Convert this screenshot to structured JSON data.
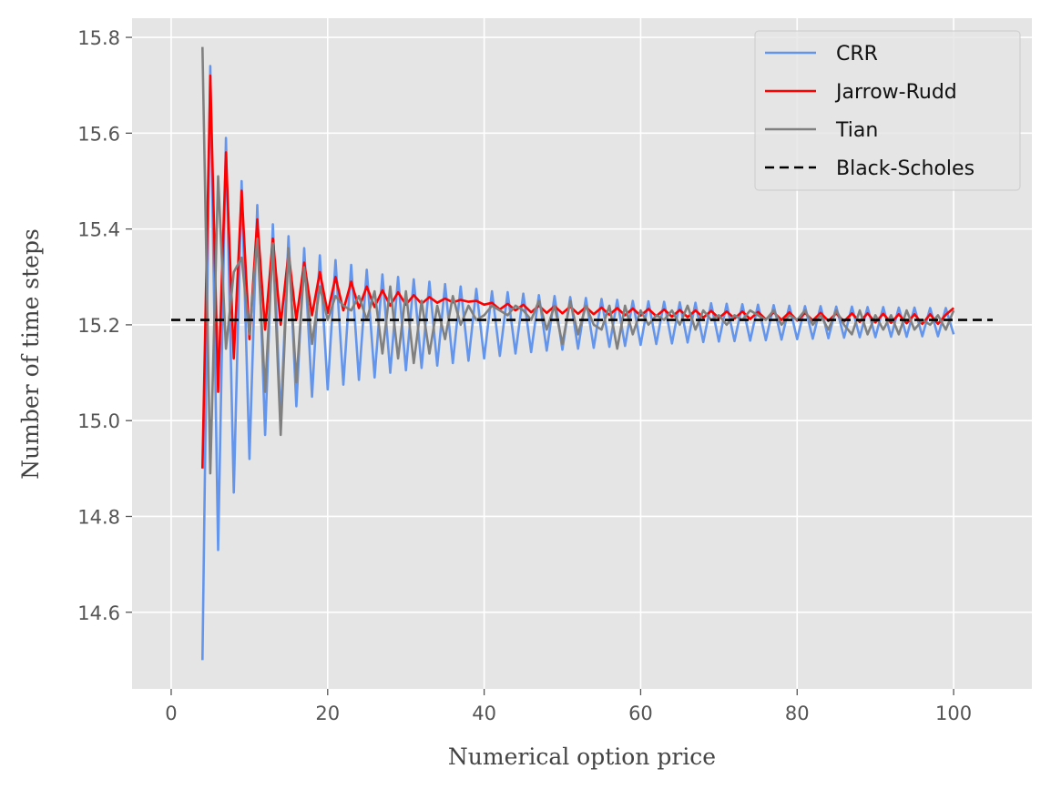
{
  "chart_data": {
    "type": "line",
    "xlabel": "Numerical option price",
    "ylabel": "Number of time steps",
    "xlim": [
      -5,
      110
    ],
    "ylim": [
      14.44,
      15.84
    ],
    "xticks": [
      0,
      20,
      40,
      60,
      80,
      100
    ],
    "xtick_labels": [
      "0",
      "20",
      "40",
      "60",
      "80",
      "100"
    ],
    "yticks": [
      14.6,
      14.8,
      15.0,
      15.2,
      15.4,
      15.6,
      15.8
    ],
    "ytick_labels": [
      "14.6",
      "14.8",
      "15.0",
      "15.2",
      "15.4",
      "15.6",
      "15.8"
    ],
    "grid": true,
    "legend": "top-right",
    "background": "#e5e5e5",
    "series": [
      {
        "name": "CRR",
        "color": "#6495ed",
        "x": [
          4,
          5,
          6,
          7,
          8,
          9,
          10,
          11,
          12,
          13,
          14,
          15,
          16,
          17,
          18,
          19,
          20,
          21,
          22,
          23,
          24,
          25,
          26,
          27,
          28,
          29,
          30,
          31,
          32,
          33,
          34,
          35,
          36,
          37,
          38,
          39,
          40,
          41,
          42,
          43,
          44,
          45,
          46,
          47,
          48,
          49,
          50,
          51,
          52,
          53,
          54,
          55,
          56,
          57,
          58,
          59,
          60,
          61,
          62,
          63,
          64,
          65,
          66,
          67,
          68,
          69,
          70,
          71,
          72,
          73,
          74,
          75,
          76,
          77,
          78,
          79,
          80,
          81,
          82,
          83,
          84,
          85,
          86,
          87,
          88,
          89,
          90,
          91,
          92,
          93,
          94,
          95,
          96,
          97,
          98,
          99,
          100
        ],
        "y": [
          14.5,
          15.74,
          14.73,
          15.59,
          14.85,
          15.5,
          14.92,
          15.45,
          14.97,
          15.41,
          15.0,
          15.385,
          15.03,
          15.36,
          15.05,
          15.345,
          15.065,
          15.335,
          15.075,
          15.325,
          15.085,
          15.315,
          15.09,
          15.305,
          15.1,
          15.3,
          15.105,
          15.295,
          15.11,
          15.29,
          15.115,
          15.285,
          15.12,
          15.28,
          15.125,
          15.275,
          15.13,
          15.27,
          15.135,
          15.268,
          15.14,
          15.265,
          15.143,
          15.262,
          15.146,
          15.26,
          15.148,
          15.258,
          15.15,
          15.256,
          15.152,
          15.254,
          15.154,
          15.252,
          15.156,
          15.25,
          15.158,
          15.249,
          15.16,
          15.248,
          15.161,
          15.247,
          15.163,
          15.246,
          15.164,
          15.245,
          15.165,
          15.244,
          15.166,
          15.243,
          15.167,
          15.242,
          15.168,
          15.241,
          15.169,
          15.24,
          15.17,
          15.239,
          15.171,
          15.239,
          15.172,
          15.238,
          15.173,
          15.238,
          15.174,
          15.237,
          15.174,
          15.237,
          15.175,
          15.236,
          15.175,
          15.236,
          15.176,
          15.235,
          15.176,
          15.235,
          15.18
        ]
      },
      {
        "name": "Jarrow-Rudd",
        "color": "#ff0000",
        "x": [
          4,
          5,
          6,
          7,
          8,
          9,
          10,
          11,
          12,
          13,
          14,
          15,
          16,
          17,
          18,
          19,
          20,
          21,
          22,
          23,
          24,
          25,
          26,
          27,
          28,
          29,
          30,
          31,
          32,
          33,
          34,
          35,
          36,
          37,
          38,
          39,
          40,
          41,
          42,
          43,
          44,
          45,
          46,
          47,
          48,
          49,
          50,
          51,
          52,
          53,
          54,
          55,
          56,
          57,
          58,
          59,
          60,
          61,
          62,
          63,
          64,
          65,
          66,
          67,
          68,
          69,
          70,
          71,
          72,
          73,
          74,
          75,
          76,
          77,
          78,
          79,
          80,
          81,
          82,
          83,
          84,
          85,
          86,
          87,
          88,
          89,
          90,
          91,
          92,
          93,
          94,
          95,
          96,
          97,
          98,
          99,
          100
        ],
        "y": [
          14.9,
          15.72,
          15.06,
          15.56,
          15.13,
          15.48,
          15.17,
          15.42,
          15.19,
          15.38,
          15.2,
          15.35,
          15.21,
          15.33,
          15.22,
          15.31,
          15.225,
          15.3,
          15.23,
          15.29,
          15.235,
          15.28,
          15.237,
          15.272,
          15.24,
          15.268,
          15.242,
          15.262,
          15.244,
          15.258,
          15.246,
          15.255,
          15.247,
          15.252,
          15.248,
          15.25,
          15.242,
          15.246,
          15.232,
          15.244,
          15.23,
          15.242,
          15.226,
          15.24,
          15.225,
          15.239,
          15.224,
          15.238,
          15.223,
          15.237,
          15.222,
          15.236,
          15.221,
          15.235,
          15.22,
          15.234,
          15.219,
          15.233,
          15.218,
          15.232,
          15.217,
          15.231,
          15.216,
          15.23,
          15.215,
          15.229,
          15.214,
          15.228,
          15.213,
          15.228,
          15.212,
          15.227,
          15.211,
          15.226,
          15.21,
          15.226,
          15.209,
          15.225,
          15.209,
          15.225,
          15.208,
          15.224,
          15.207,
          15.224,
          15.206,
          15.224,
          15.205,
          15.223,
          15.204,
          15.222,
          15.203,
          15.222,
          15.202,
          15.222,
          15.202,
          15.221,
          15.235
        ]
      },
      {
        "name": "Tian",
        "color": "#808080",
        "x": [
          4,
          5,
          6,
          7,
          8,
          9,
          10,
          11,
          12,
          13,
          14,
          15,
          16,
          17,
          18,
          19,
          20,
          21,
          22,
          23,
          24,
          25,
          26,
          27,
          28,
          29,
          30,
          31,
          32,
          33,
          34,
          35,
          36,
          37,
          38,
          39,
          40,
          41,
          42,
          43,
          44,
          45,
          46,
          47,
          48,
          49,
          50,
          51,
          52,
          53,
          54,
          55,
          56,
          57,
          58,
          59,
          60,
          61,
          62,
          63,
          64,
          65,
          66,
          67,
          68,
          69,
          70,
          71,
          72,
          73,
          74,
          75,
          76,
          77,
          78,
          79,
          80,
          81,
          82,
          83,
          84,
          85,
          86,
          87,
          88,
          89,
          90,
          91,
          92,
          93,
          94,
          95,
          96,
          97,
          98,
          99,
          100
        ],
        "y": [
          15.78,
          14.89,
          15.51,
          15.15,
          15.31,
          15.34,
          15.18,
          15.38,
          15.06,
          15.37,
          14.97,
          15.36,
          15.08,
          15.32,
          15.16,
          15.28,
          15.21,
          15.26,
          15.24,
          15.23,
          15.26,
          15.21,
          15.27,
          15.14,
          15.28,
          15.13,
          15.27,
          15.12,
          15.25,
          15.14,
          15.24,
          15.17,
          15.26,
          15.2,
          15.24,
          15.21,
          15.22,
          15.24,
          15.23,
          15.22,
          15.24,
          15.23,
          15.21,
          15.25,
          15.19,
          15.24,
          15.16,
          15.25,
          15.18,
          15.24,
          15.2,
          15.19,
          15.24,
          15.15,
          15.24,
          15.18,
          15.23,
          15.2,
          15.22,
          15.21,
          15.23,
          15.2,
          15.24,
          15.19,
          15.23,
          15.21,
          15.22,
          15.2,
          15.22,
          15.21,
          15.23,
          15.22,
          15.21,
          15.23,
          15.2,
          15.22,
          15.21,
          15.23,
          15.2,
          15.22,
          15.19,
          15.23,
          15.2,
          15.18,
          15.23,
          15.18,
          15.22,
          15.19,
          15.22,
          15.18,
          15.23,
          15.19,
          15.21,
          15.2,
          15.22,
          15.19,
          15.23
        ]
      },
      {
        "name": "Black-Scholes",
        "color": "#000000",
        "dashed": true,
        "x": [
          0,
          105
        ],
        "y": [
          15.21,
          15.21
        ]
      }
    ]
  }
}
